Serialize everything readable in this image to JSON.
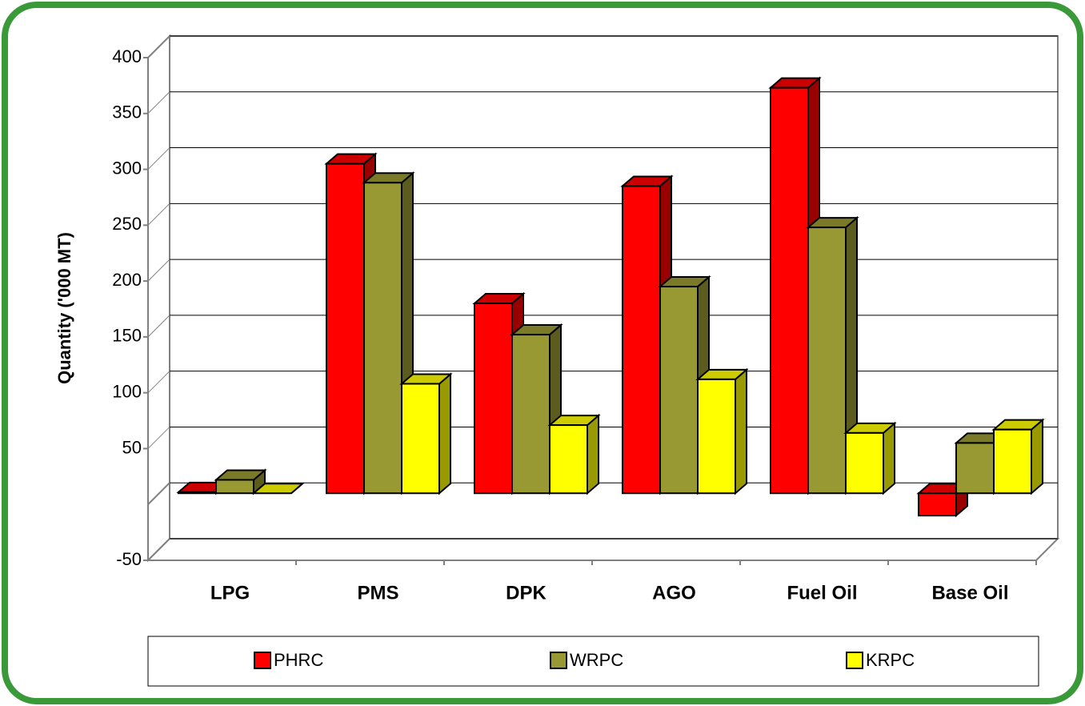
{
  "chart_data": {
    "type": "bar3d",
    "y_label": "Quantity ('000 MT)",
    "categories": [
      "LPG",
      "PMS",
      "DPK",
      "AGO",
      "Fuel Oil",
      "Base Oil"
    ],
    "series": [
      {
        "name": "PHRC",
        "color": "#ff0000",
        "values": [
          1,
          295,
          170,
          275,
          363,
          -20
        ]
      },
      {
        "name": "WRPC",
        "color": "#999933",
        "values": [
          12,
          278,
          142,
          185,
          238,
          45
        ]
      },
      {
        "name": "KRPC",
        "color": "#ffff00",
        "values": [
          0,
          98,
          61,
          102,
          54,
          57
        ]
      }
    ],
    "ylim": [
      -50,
      400
    ],
    "yticks": [
      -50,
      50,
      100,
      150,
      200,
      250,
      300,
      350,
      400
    ],
    "grid": true
  }
}
